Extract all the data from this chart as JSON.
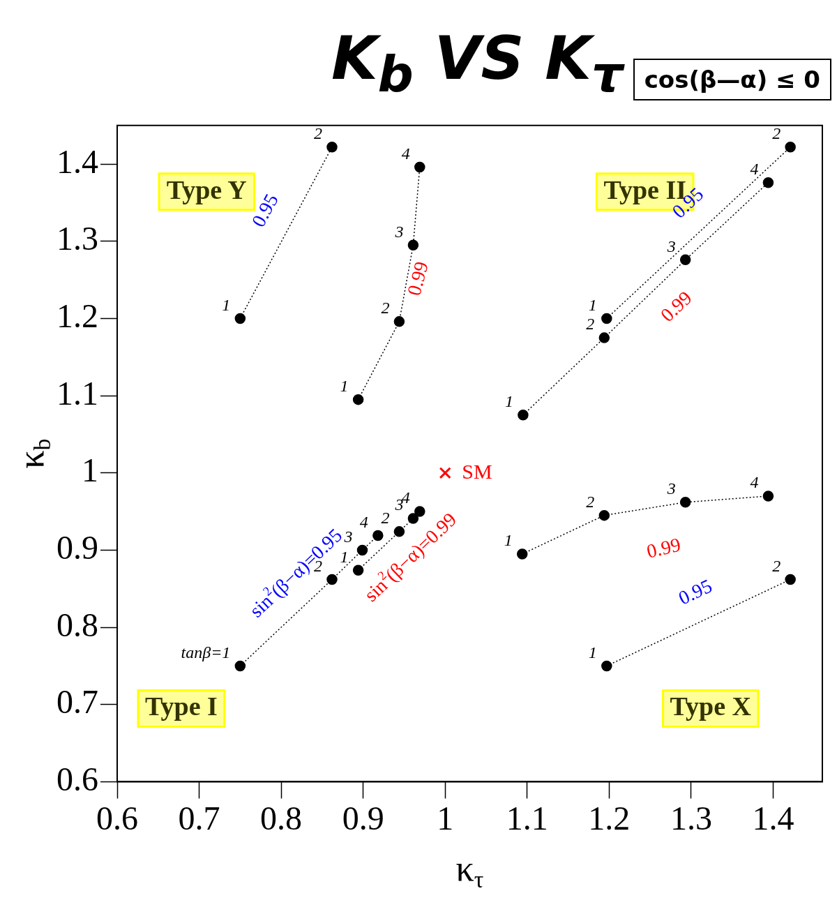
{
  "chart_data": {
    "type": "line",
    "title": "K$_{b}$ VS K$_{τ}$",
    "xlabel": "κ$_{τ}$",
    "ylabel": "κ$_{b}$",
    "xlim": [
      0.6,
      1.46
    ],
    "ylim": [
      0.6,
      1.45
    ],
    "xticks": [
      0.6,
      0.7,
      0.8,
      0.9,
      1,
      1.1,
      1.2,
      1.3,
      1.4
    ],
    "yticks": [
      0.6,
      0.7,
      0.8,
      0.9,
      1,
      1.1,
      1.2,
      1.3,
      1.4
    ],
    "grid": false,
    "legend": false,
    "marker": "circle",
    "line_style": "dotted",
    "tick_labels": "xy",
    "series": [
      {
        "name": "0.95",
        "color": "#000000",
        "x": [
          1.197,
          1.421
        ],
        "values": [
          1.2,
          1.422
        ]
      },
      {
        "name": "0.99",
        "color": "#000000",
        "x": [
          1.095,
          1.194,
          1.293,
          1.394
        ],
        "values": [
          1.075,
          1.175,
          1.276,
          1.376
        ]
      },
      {
        "name": "sin$^{2}$(β−α)=0.95",
        "color": "#000000",
        "x": [
          0.75,
          0.862,
          0.899,
          0.918
        ],
        "values": [
          0.75,
          0.862,
          0.9,
          0.919
        ]
      },
      {
        "name": "sin$^{2}$(β−α)=0.99",
        "color": "#000000",
        "x": [
          0.894,
          0.944,
          0.961,
          0.969
        ],
        "values": [
          0.874,
          0.924,
          0.941,
          0.95
        ]
      },
      {
        "name": "0.95",
        "color": "#000000",
        "x": [
          1.197,
          1.421
        ],
        "values": [
          0.75,
          0.862
        ]
      },
      {
        "name": "0.99",
        "color": "#000000",
        "x": [
          1.094,
          1.194,
          1.293,
          1.394
        ],
        "values": [
          0.895,
          0.945,
          0.962,
          0.97
        ]
      },
      {
        "name": "SM",
        "type": "scatter",
        "marker": "cross",
        "color": "#ff0000",
        "x": [
          1
        ],
        "values": [
          1
        ]
      },
      {
        "name": "0.99",
        "color": "#000000",
        "x": [
          0.894,
          0.944,
          0.961,
          0.969
        ],
        "values": [
          1.095,
          1.196,
          1.295,
          1.396
        ]
      },
      {
        "name": "0.95",
        "color": "#000000",
        "x": [
          0.75,
          0.862
        ],
        "values": [
          1.2,
          1.422
        ]
      }
    ],
    "annotations": [
      "cos(β—α) ≤ 0",
      "Type Y",
      "Type II",
      "Type I",
      "Type X",
      {
        "text": "1",
        "x": 1.197,
        "y": 1.2
      },
      {
        "text": "2",
        "x": 1.421,
        "y": 1.422
      },
      {
        "text": "1",
        "x": 1.095,
        "y": 1.075
      },
      {
        "text": "2",
        "x": 1.194,
        "y": 1.175
      },
      {
        "text": "3",
        "x": 1.293,
        "y": 1.276
      },
      {
        "text": "4",
        "x": 1.394,
        "y": 1.376
      },
      {
        "text": "tanβ=1",
        "x": 0.75,
        "y": 0.75
      },
      {
        "text": "2",
        "x": 0.862,
        "y": 0.862
      },
      {
        "text": "3",
        "x": 0.899,
        "y": 0.9
      },
      {
        "text": "4",
        "x": 0.918,
        "y": 0.919
      },
      {
        "text": "1",
        "x": 0.894,
        "y": 0.874
      },
      {
        "text": "2",
        "x": 0.944,
        "y": 0.924
      },
      {
        "text": "3",
        "x": 0.961,
        "y": 0.941
      },
      {
        "text": "4",
        "x": 0.969,
        "y": 0.95
      },
      {
        "text": "1",
        "x": 1.197,
        "y": 0.75
      },
      {
        "text": "2",
        "x": 1.421,
        "y": 0.862
      },
      {
        "text": "1",
        "x": 1.094,
        "y": 0.895
      },
      {
        "text": "2",
        "x": 1.194,
        "y": 0.945
      },
      {
        "text": "3",
        "x": 1.293,
        "y": 0.962
      },
      {
        "text": "4",
        "x": 1.394,
        "y": 0.97
      },
      {
        "text": "1",
        "x": 0.894,
        "y": 1.095
      },
      {
        "text": "2",
        "x": 0.944,
        "y": 1.196
      },
      {
        "text": "3",
        "x": 0.961,
        "y": 1.295
      },
      {
        "text": "4",
        "x": 0.969,
        "y": 1.396
      },
      {
        "text": "1",
        "x": 0.75,
        "y": 1.2
      },
      {
        "text": "2",
        "x": 0.862,
        "y": 1.422
      }
    ]
  }
}
